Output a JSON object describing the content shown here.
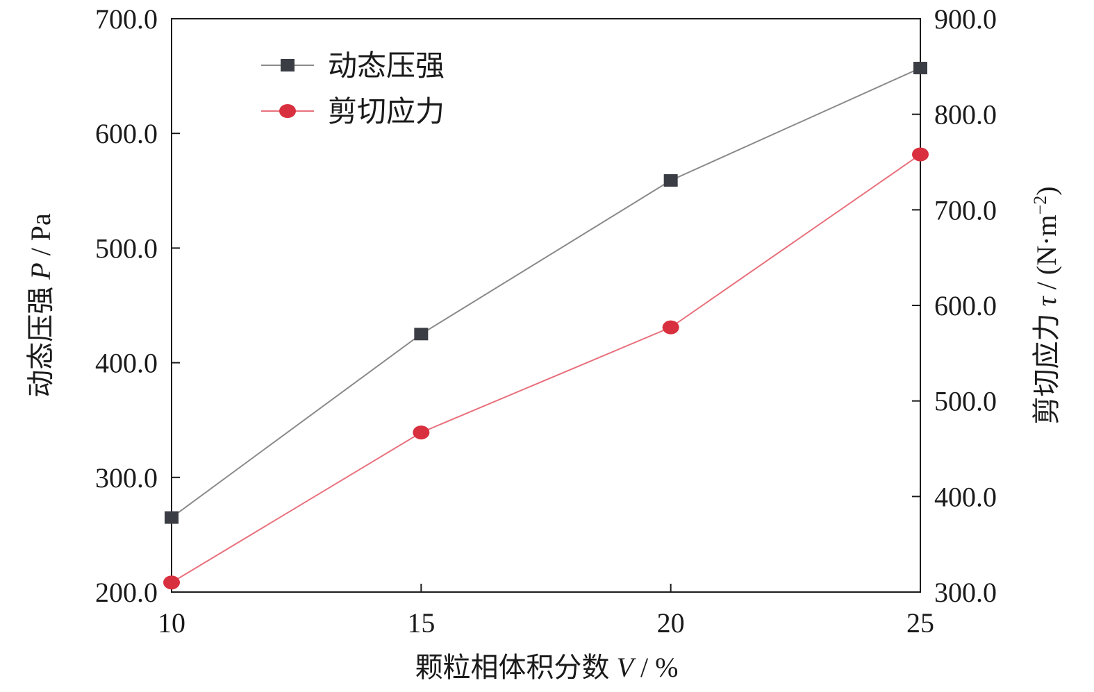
{
  "chart_data": {
    "type": "line",
    "x": [
      10,
      15,
      20,
      25
    ],
    "xlim": [
      10,
      25
    ],
    "x_ticks": [
      "10",
      "15",
      "20",
      "25"
    ],
    "xlabel": {
      "prefix": "颗粒相体积分数 ",
      "symbol": "V",
      "unit": " / %"
    },
    "y_left": {
      "lim": [
        200,
        700
      ],
      "ticks": [
        "200.0",
        "300.0",
        "400.0",
        "500.0",
        "600.0",
        "700.0"
      ],
      "label": {
        "prefix": "动态压强 ",
        "symbol": "P",
        "unit": " / Pa"
      }
    },
    "y_right": {
      "lim": [
        300,
        900
      ],
      "ticks": [
        "300.0",
        "400.0",
        "500.0",
        "600.0",
        "700.0",
        "800.0",
        "900.0"
      ],
      "label": {
        "prefix": "剪切应力 ",
        "symbol": "τ",
        "unit": " / (N·m",
        "sup": "−2",
        "close": ")"
      }
    },
    "series": [
      {
        "name": "动态压强",
        "axis": "left",
        "marker": "square",
        "color": "#8a8a8a",
        "marker_color": "#3a3d44",
        "values": [
          265,
          425,
          559,
          657
        ]
      },
      {
        "name": "剪切应力",
        "axis": "right",
        "marker": "circle",
        "color": "#e8707c",
        "marker_color": "#d9303f",
        "values": [
          310,
          467,
          577,
          758
        ]
      }
    ],
    "grid": false,
    "legend": "top-left"
  }
}
